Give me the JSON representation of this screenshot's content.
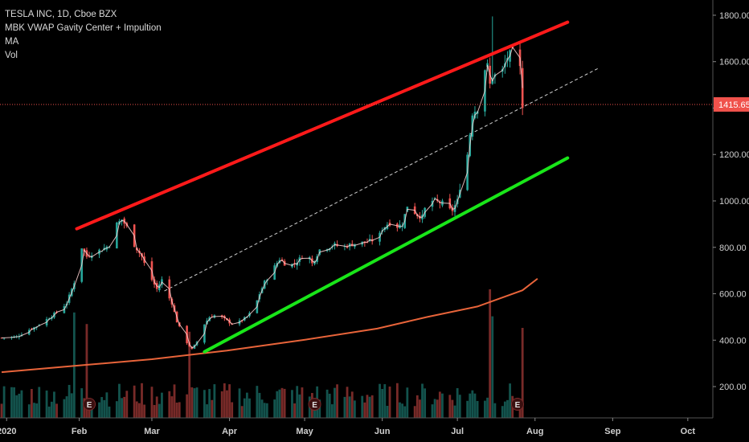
{
  "legend": {
    "title": "TESLA INC, 1D, Cboe BZX",
    "indicator": "MBK VWAP Gavity Center + Impultion",
    "ma": "MA",
    "vol": "Vol"
  },
  "colors": {
    "up": "#26a69a",
    "down": "#ef5350",
    "ma": "#e8643a",
    "channel_top": "#ff1a1a",
    "channel_bottom": "#19e619",
    "midline": "#d0d0d0",
    "price_label_bg": "#f0524c",
    "vwap_line": "#ffd4d4"
  },
  "last_price": {
    "label": "1415.65",
    "value": 1415.65
  },
  "event_marker": "E",
  "chart_data": {
    "type": "candlestick",
    "title": "TESLA INC, 1D, Cboe BZX",
    "ylim": [
      270,
      1830
    ],
    "y_ticks": [
      "200.00",
      "400.00",
      "600.00",
      "800.00",
      "1000.00",
      "1200.00",
      "1400.00",
      "1600.00",
      "1800.00"
    ],
    "y_tick_values": [
      200,
      400,
      600,
      800,
      1000,
      1200,
      1400,
      1600,
      1800
    ],
    "x_ticks": [
      "2020",
      "Feb",
      "Mar",
      "Apr",
      "May",
      "Jun",
      "Jul",
      "Aug",
      "Sep",
      "Oct"
    ],
    "x_tick_days": [
      2,
      31,
      60,
      91,
      121,
      152,
      182,
      213,
      244,
      274
    ],
    "xlim": [
      0,
      284
    ],
    "grid": false,
    "close_anchors": [
      [
        0,
        410
      ],
      [
        6,
        415
      ],
      [
        10,
        440
      ],
      [
        14,
        460
      ],
      [
        18,
        490
      ],
      [
        22,
        520
      ],
      [
        26,
        560
      ],
      [
        29,
        650
      ],
      [
        30,
        780
      ],
      [
        31,
        890
      ],
      [
        32,
        800
      ],
      [
        34,
        760
      ],
      [
        37,
        780
      ],
      [
        40,
        790
      ],
      [
        43,
        810
      ],
      [
        46,
        900
      ],
      [
        48,
        920
      ],
      [
        51,
        870
      ],
      [
        53,
        810
      ],
      [
        56,
        760
      ],
      [
        58,
        700
      ],
      [
        60,
        660
      ],
      [
        62,
        620
      ],
      [
        64,
        660
      ],
      [
        66,
        600
      ],
      [
        68,
        560
      ],
      [
        70,
        480
      ],
      [
        72,
        430
      ],
      [
        74,
        390
      ],
      [
        76,
        360
      ],
      [
        79,
        410
      ],
      [
        81,
        470
      ],
      [
        83,
        500
      ],
      [
        86,
        510
      ],
      [
        89,
        490
      ],
      [
        92,
        470
      ],
      [
        95,
        480
      ],
      [
        98,
        500
      ],
      [
        101,
        540
      ],
      [
        103,
        600
      ],
      [
        105,
        650
      ],
      [
        108,
        700
      ],
      [
        111,
        750
      ],
      [
        114,
        720
      ],
      [
        117,
        730
      ],
      [
        120,
        760
      ],
      [
        122,
        780
      ],
      [
        124,
        730
      ],
      [
        127,
        790
      ],
      [
        130,
        800
      ],
      [
        133,
        810
      ],
      [
        136,
        800
      ],
      [
        139,
        810
      ],
      [
        142,
        820
      ],
      [
        145,
        820
      ],
      [
        148,
        830
      ],
      [
        150,
        830
      ],
      [
        152,
        880
      ],
      [
        154,
        900
      ],
      [
        156,
        910
      ],
      [
        158,
        890
      ],
      [
        160,
        900
      ],
      [
        162,
        980
      ],
      [
        164,
        960
      ],
      [
        166,
        940
      ],
      [
        168,
        930
      ],
      [
        170,
        1000
      ],
      [
        173,
        1000
      ],
      [
        176,
        990
      ],
      [
        178,
        960
      ],
      [
        180,
        960
      ],
      [
        182,
        1000
      ],
      [
        184,
        1120
      ],
      [
        186,
        1200
      ],
      [
        188,
        1380
      ],
      [
        190,
        1400
      ],
      [
        191,
        1390
      ],
      [
        192,
        1560
      ],
      [
        194,
        1580
      ],
      [
        195,
        1500
      ],
      [
        196,
        1540
      ],
      [
        198,
        1540
      ],
      [
        200,
        1560
      ],
      [
        202,
        1620
      ],
      [
        204,
        1640
      ],
      [
        206,
        1580
      ],
      [
        207,
        1570
      ],
      [
        208,
        1415
      ]
    ],
    "volume_ticks": [
      0,
      1,
      2
    ],
    "moving_average": [
      [
        0,
        262
      ],
      [
        30,
        290
      ],
      [
        60,
        318
      ],
      [
        90,
        355
      ],
      [
        120,
        400
      ],
      [
        150,
        450
      ],
      [
        170,
        500
      ],
      [
        190,
        545
      ],
      [
        208,
        615
      ],
      [
        214,
        665
      ]
    ],
    "channel_top": [
      [
        30,
        880
      ],
      [
        226,
        1770
      ]
    ],
    "channel_bottom": [
      [
        81,
        350
      ],
      [
        226,
        1185
      ]
    ],
    "midline": [
      [
        65,
        612
      ],
      [
        238,
        1570
      ]
    ],
    "earnings_days": [
      35,
      125,
      206
    ]
  }
}
